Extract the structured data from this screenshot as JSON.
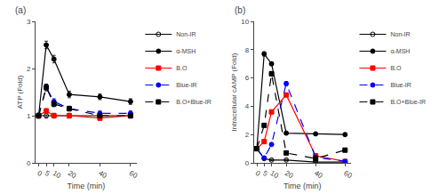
{
  "chart_data": [
    {
      "type": "line",
      "title": "(a)",
      "x_label": "Time (min)",
      "y_label": "ATP (Fold)",
      "x": [
        0,
        5,
        10,
        20,
        40,
        60
      ],
      "xlim": [
        -2,
        64
      ],
      "xticks": [
        0,
        5,
        10,
        20,
        40,
        60
      ],
      "ylim": [
        0,
        3
      ],
      "yticks": [
        0,
        1,
        2,
        3
      ],
      "grid": false,
      "legend": "right",
      "series": [
        {
          "name": "Non-IR",
          "color": "black",
          "marker": "circle-open",
          "line_style": "solid",
          "values": [
            1.0,
            1.0,
            1.0,
            1.0,
            1.0,
            1.0
          ],
          "errors": [
            0.05,
            0.05,
            0.05,
            0.05,
            0.05,
            0.05
          ]
        },
        {
          "name": "α-MSH",
          "color": "black",
          "marker": "circle",
          "line_style": "solid",
          "values": [
            1.0,
            2.5,
            2.2,
            1.45,
            1.4,
            1.3
          ],
          "errors": [
            0.05,
            0.08,
            0.08,
            0.07,
            0.06,
            0.06
          ]
        },
        {
          "name": "B.O",
          "color": "red",
          "marker": "square",
          "line_style": "solid",
          "values": [
            1.0,
            1.1,
            1.0,
            1.0,
            0.95,
            1.0
          ],
          "errors": [
            0.05,
            0.05,
            0.05,
            0.05,
            0.05,
            0.05
          ]
        },
        {
          "name": "Blue-IR",
          "color": "blue",
          "marker": "circle",
          "line_style": "dash",
          "values": [
            1.0,
            1.6,
            1.3,
            1.15,
            1.05,
            1.05
          ],
          "errors": [
            0.05,
            0.07,
            0.06,
            0.05,
            0.05,
            0.05
          ]
        },
        {
          "name": "B.O+Blue-IR",
          "color": "black",
          "marker": "square",
          "line_style": "dash",
          "values": [
            1.0,
            1.6,
            1.25,
            1.15,
            1.0,
            1.0
          ],
          "errors": [
            0.05,
            0.07,
            0.06,
            0.05,
            0.05,
            0.05
          ]
        }
      ]
    },
    {
      "type": "line",
      "title": "(b)",
      "x_label": "Time (min)",
      "y_label": "Intracellular cAMP (Fold)",
      "x": [
        0,
        5,
        10,
        20,
        40,
        60
      ],
      "xlim": [
        -2,
        64
      ],
      "xticks": [
        0,
        5,
        10,
        20,
        40,
        60
      ],
      "ylim": [
        0,
        10
      ],
      "yticks": [
        0,
        2,
        4,
        6,
        8,
        10
      ],
      "grid": false,
      "legend": "right",
      "series": [
        {
          "name": "Non-IR",
          "color": "black",
          "marker": "circle-open",
          "line_style": "solid",
          "values": [
            1.0,
            0.3,
            0.2,
            0.2,
            0.05,
            0.05
          ],
          "errors": [
            0.05,
            0.05,
            0.05,
            0.05,
            0.03,
            0.03
          ]
        },
        {
          "name": "α-MSH",
          "color": "black",
          "marker": "circle",
          "line_style": "solid",
          "values": [
            1.0,
            7.7,
            7.0,
            2.1,
            2.05,
            2.0
          ],
          "errors": [
            0.05,
            0.15,
            0.12,
            0.1,
            0.08,
            0.08
          ]
        },
        {
          "name": "B.O",
          "color": "red",
          "marker": "square",
          "line_style": "solid",
          "values": [
            1.0,
            1.5,
            3.6,
            4.8,
            0.5,
            0.1
          ],
          "errors": [
            0.05,
            0.08,
            0.12,
            0.12,
            0.05,
            0.03
          ]
        },
        {
          "name": "Blue-IR",
          "color": "blue",
          "marker": "circle",
          "line_style": "dash",
          "values": [
            1.0,
            0.35,
            1.3,
            5.6,
            0.4,
            0.1
          ],
          "errors": [
            0.05,
            0.05,
            0.08,
            0.15,
            0.05,
            0.03
          ]
        },
        {
          "name": "B.O+Blue-IR",
          "color": "black",
          "marker": "square",
          "line_style": "dash",
          "values": [
            1.0,
            2.65,
            6.3,
            0.7,
            0.3,
            0.9
          ],
          "errors": [
            0.05,
            0.1,
            0.15,
            0.08,
            0.05,
            0.05
          ]
        }
      ]
    }
  ]
}
